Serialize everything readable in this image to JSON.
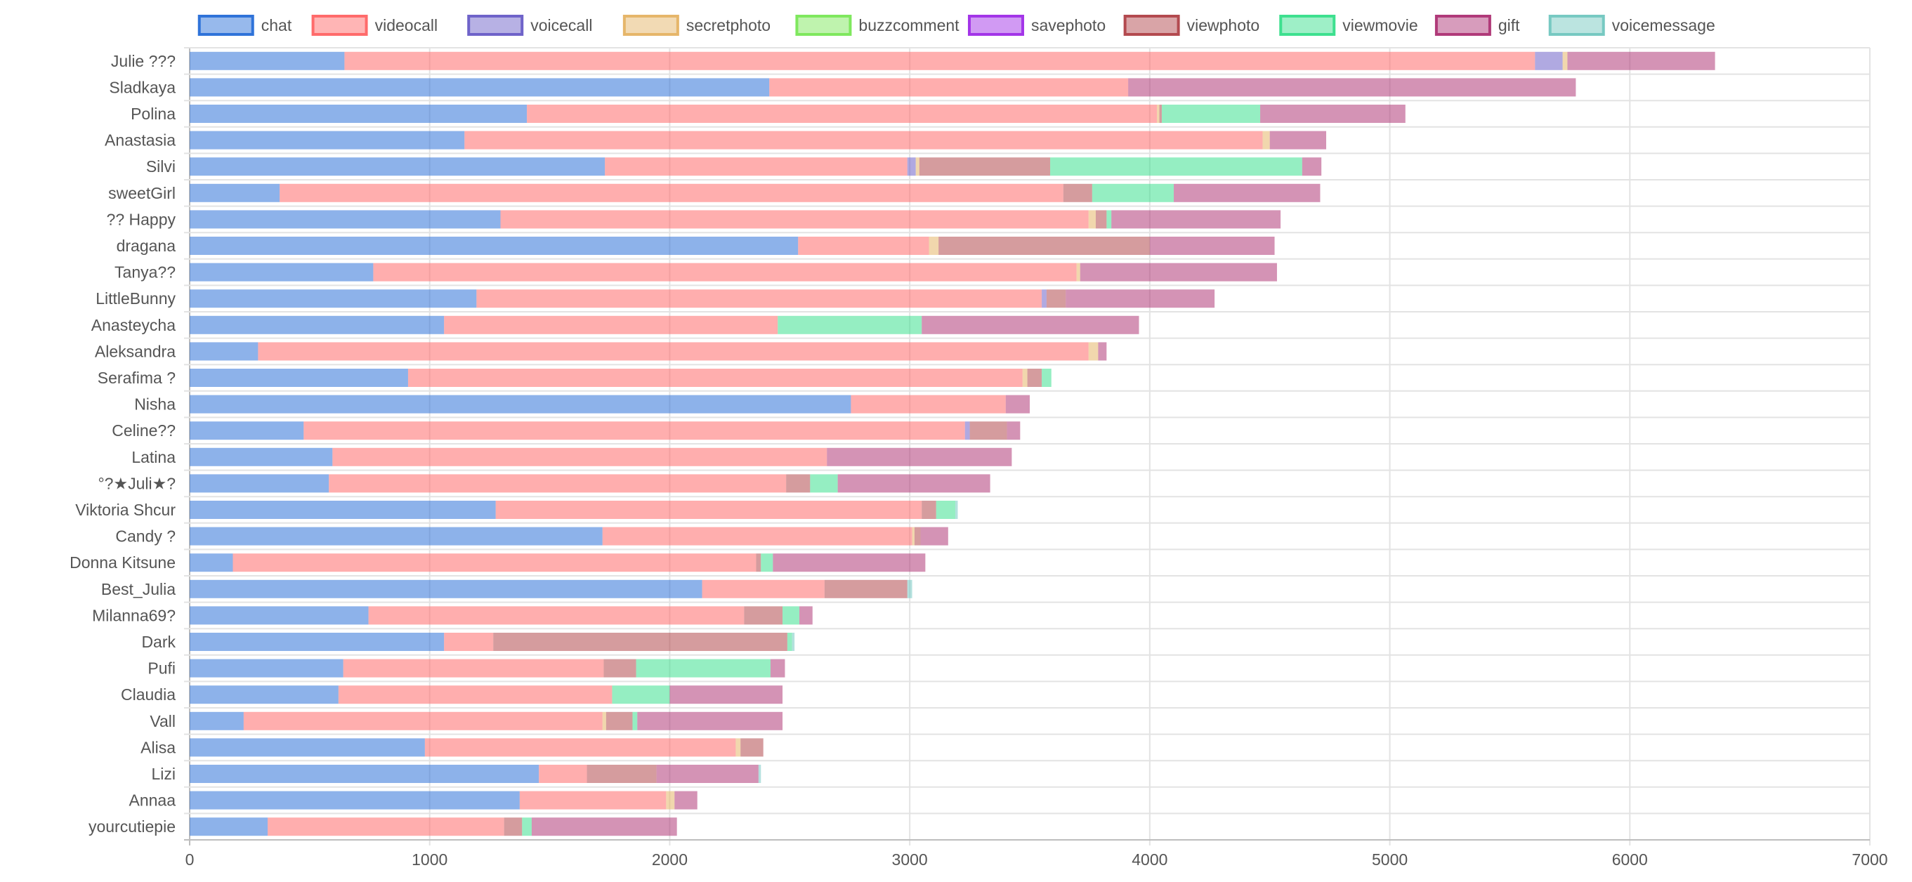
{
  "chart_data": {
    "type": "bar",
    "orientation": "horizontal",
    "stacked": true,
    "legend_position": "top",
    "grid": true,
    "xlim": [
      0,
      7000
    ],
    "x_ticks": [
      0,
      1000,
      2000,
      3000,
      4000,
      5000,
      6000,
      7000
    ],
    "categories": [
      "Julie ???",
      "Sladkaya",
      "Polina",
      "Anastasia",
      "Silvi",
      "sweetGirl",
      "?? Happy",
      "dragana",
      "Tanya??",
      "LittleBunny",
      "Anasteycha",
      "Aleksandra",
      "Serafima ?",
      "Nisha",
      "Celine??",
      "Latina",
      "°?★Juli★?",
      "Viktoria Shcur",
      "Candy ?",
      "Donna Kitsune",
      "Best_Julia",
      "Milanna69?",
      "Dark",
      "Pufi",
      "Claudia",
      "Vall",
      "Alisa",
      "Lizi",
      "Annaa",
      "yourcutiepie"
    ],
    "series": [
      {
        "name": "chat",
        "color": "#2f73d9",
        "values": [
          645,
          2415,
          1405,
          1145,
          1730,
          375,
          1295,
          2535,
          765,
          1195,
          1060,
          285,
          910,
          2755,
          475,
          595,
          580,
          1275,
          1720,
          180,
          2135,
          745,
          1060,
          640,
          620,
          225,
          980,
          1455,
          1375,
          325
        ]
      },
      {
        "name": "videocall",
        "color": "#ff6b6b",
        "values": [
          4960,
          1495,
          2625,
          3325,
          1260,
          3265,
          2450,
          545,
          2930,
          2355,
          1390,
          3460,
          2560,
          645,
          2755,
          2060,
          1905,
          1775,
          1290,
          2180,
          510,
          1565,
          205,
          1085,
          1140,
          1495,
          1295,
          200,
          610,
          985
        ]
      },
      {
        "name": "voicecall",
        "color": "#6f63c9",
        "values": [
          115,
          0,
          0,
          0,
          35,
          0,
          0,
          0,
          0,
          20,
          0,
          0,
          0,
          0,
          20,
          0,
          0,
          0,
          0,
          0,
          0,
          0,
          0,
          0,
          0,
          0,
          0,
          0,
          0,
          0
        ]
      },
      {
        "name": "secretphoto",
        "color": "#e6b66a",
        "values": [
          20,
          0,
          10,
          30,
          15,
          0,
          30,
          40,
          15,
          0,
          0,
          40,
          20,
          0,
          0,
          0,
          0,
          0,
          10,
          0,
          0,
          0,
          0,
          0,
          0,
          15,
          20,
          0,
          35,
          0
        ]
      },
      {
        "name": "buzzcomment",
        "color": "#7fe85e",
        "values": [
          0,
          0,
          0,
          0,
          0,
          0,
          0,
          0,
          0,
          0,
          0,
          0,
          0,
          0,
          0,
          0,
          0,
          0,
          0,
          0,
          0,
          0,
          0,
          0,
          0,
          0,
          0,
          0,
          0,
          0
        ]
      },
      {
        "name": "savephoto",
        "color": "#a335e8",
        "values": [
          0,
          0,
          0,
          0,
          0,
          0,
          0,
          0,
          0,
          0,
          0,
          0,
          0,
          0,
          0,
          0,
          0,
          0,
          0,
          0,
          0,
          0,
          0,
          0,
          0,
          0,
          0,
          0,
          0,
          0
        ]
      },
      {
        "name": "viewphoto",
        "color": "#b34a4f",
        "values": [
          0,
          0,
          10,
          0,
          545,
          120,
          45,
          880,
          0,
          80,
          0,
          0,
          60,
          0,
          155,
          0,
          100,
          60,
          25,
          20,
          345,
          160,
          1225,
          135,
          0,
          110,
          95,
          290,
          0,
          75
        ]
      },
      {
        "name": "viewmovie",
        "color": "#3ee08f",
        "values": [
          0,
          0,
          410,
          0,
          1050,
          340,
          20,
          0,
          0,
          0,
          600,
          0,
          40,
          0,
          0,
          0,
          115,
          80,
          0,
          50,
          0,
          70,
          20,
          560,
          240,
          20,
          0,
          0,
          0,
          40
        ]
      },
      {
        "name": "gift",
        "color": "#b03a79",
        "values": [
          615,
          1865,
          605,
          235,
          80,
          610,
          705,
          520,
          820,
          620,
          905,
          35,
          0,
          100,
          55,
          770,
          635,
          0,
          115,
          635,
          0,
          55,
          0,
          60,
          470,
          605,
          0,
          425,
          95,
          605
        ]
      },
      {
        "name": "voicemessage",
        "color": "#77c9c2",
        "values": [
          0,
          0,
          0,
          0,
          0,
          0,
          0,
          0,
          0,
          0,
          0,
          0,
          0,
          0,
          0,
          0,
          0,
          10,
          0,
          0,
          20,
          0,
          10,
          0,
          0,
          0,
          0,
          10,
          0,
          0
        ]
      }
    ]
  }
}
